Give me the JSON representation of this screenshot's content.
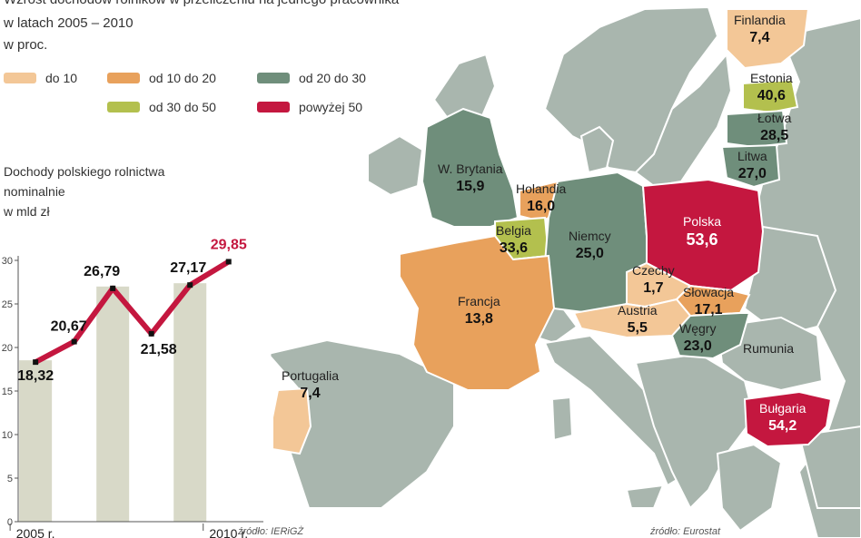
{
  "header": {
    "line1": "Wzrost dochodów rolników w przeliczeniu na jednego pracownika",
    "line2": "w latach 2005 – 2010",
    "line3": "w proc."
  },
  "legend": [
    {
      "label": "do 10",
      "color": "#f3c797"
    },
    {
      "label": "od 10 do 20",
      "color": "#e8a15c"
    },
    {
      "label": "od 20 do 30",
      "color": "#6f8e7b"
    },
    {
      "label": "od 30 do 50",
      "color": "#b3c04e"
    },
    {
      "label": "powyżej 50",
      "color": "#c4173f"
    }
  ],
  "colors": {
    "land_other": "#a9b6ae",
    "sea": "#ffffff",
    "border": "#ffffff",
    "chart_line": "#c4173f",
    "chart_column": "#b8b99a"
  },
  "countries": [
    {
      "id": "finlandia",
      "name": "Finlandia",
      "value": "7,4",
      "category": "do 10"
    },
    {
      "id": "estonia",
      "name": "Estonia",
      "value": "40,6",
      "category": "od 30 do 50"
    },
    {
      "id": "lotwa",
      "name": "Łotwa",
      "value": "28,5",
      "category": "od 20 do 30"
    },
    {
      "id": "litwa",
      "name": "Litwa",
      "value": "27,0",
      "category": "od 20 do 30"
    },
    {
      "id": "wbrytania",
      "name": "W. Brytania",
      "value": "15,9",
      "category": "od 10 do 20"
    },
    {
      "id": "holandia",
      "name": "Holandia",
      "value": "16,0",
      "category": "od 10 do 20"
    },
    {
      "id": "belgia",
      "name": "Belgia",
      "value": "33,6",
      "category": "od 30 do 50"
    },
    {
      "id": "niemcy",
      "name": "Niemcy",
      "value": "25,0",
      "category": "od 20 do 30"
    },
    {
      "id": "polska",
      "name": "Polska",
      "value": "53,6",
      "category": "powyżej 50"
    },
    {
      "id": "czechy",
      "name": "Czechy",
      "value": "1,7",
      "category": "do 10"
    },
    {
      "id": "slowacja",
      "name": "Słowacja",
      "value": "17,1",
      "category": "od 10 do 20"
    },
    {
      "id": "austria",
      "name": "Austria",
      "value": "5,5",
      "category": "do 10"
    },
    {
      "id": "wegry",
      "name": "Węgry",
      "value": "23,0",
      "category": "od 20 do 30"
    },
    {
      "id": "francja",
      "name": "Francja",
      "value": "13,8",
      "category": "od 10 do 20"
    },
    {
      "id": "portugalia",
      "name": "Portugalia",
      "value": "7,4",
      "category": "do 10"
    },
    {
      "id": "bulgaria",
      "name": "Bułgaria",
      "value": "54,2",
      "category": "powyżej 50"
    }
  ],
  "other_labels": {
    "rumunia": "Rumunia"
  },
  "inset_chart": {
    "title_line1": "Dochody polskiego rolnictwa",
    "title_line2": "nominalnie",
    "title_line3": "w mld zł",
    "source": "źródło: IERiGŻ"
  },
  "map_source": "źródło: Eurostat",
  "chart_data": {
    "type": "line",
    "title": "Dochody polskiego rolnictwa nominalnie",
    "ylabel": "w mld zł",
    "x": [
      2005,
      2006,
      2007,
      2008,
      2009,
      2010,
      2011
    ],
    "x_tick_labels": [
      "2005 r.",
      "2010 r."
    ],
    "x_tick_positions": [
      2005,
      2010
    ],
    "ylim": [
      0,
      30
    ],
    "y_ticks": [
      0,
      5,
      10,
      15,
      20,
      25,
      30
    ],
    "series": [
      {
        "values": [
          18.32,
          20.67,
          26.79,
          21.58,
          27.17,
          29.85
        ],
        "labels": [
          "18,32",
          "20,67",
          "26,79",
          "21,58",
          "27,17",
          "29,85"
        ],
        "x": [
          2005,
          2006,
          2007,
          2008,
          2009,
          2010
        ]
      }
    ],
    "grid": false
  }
}
